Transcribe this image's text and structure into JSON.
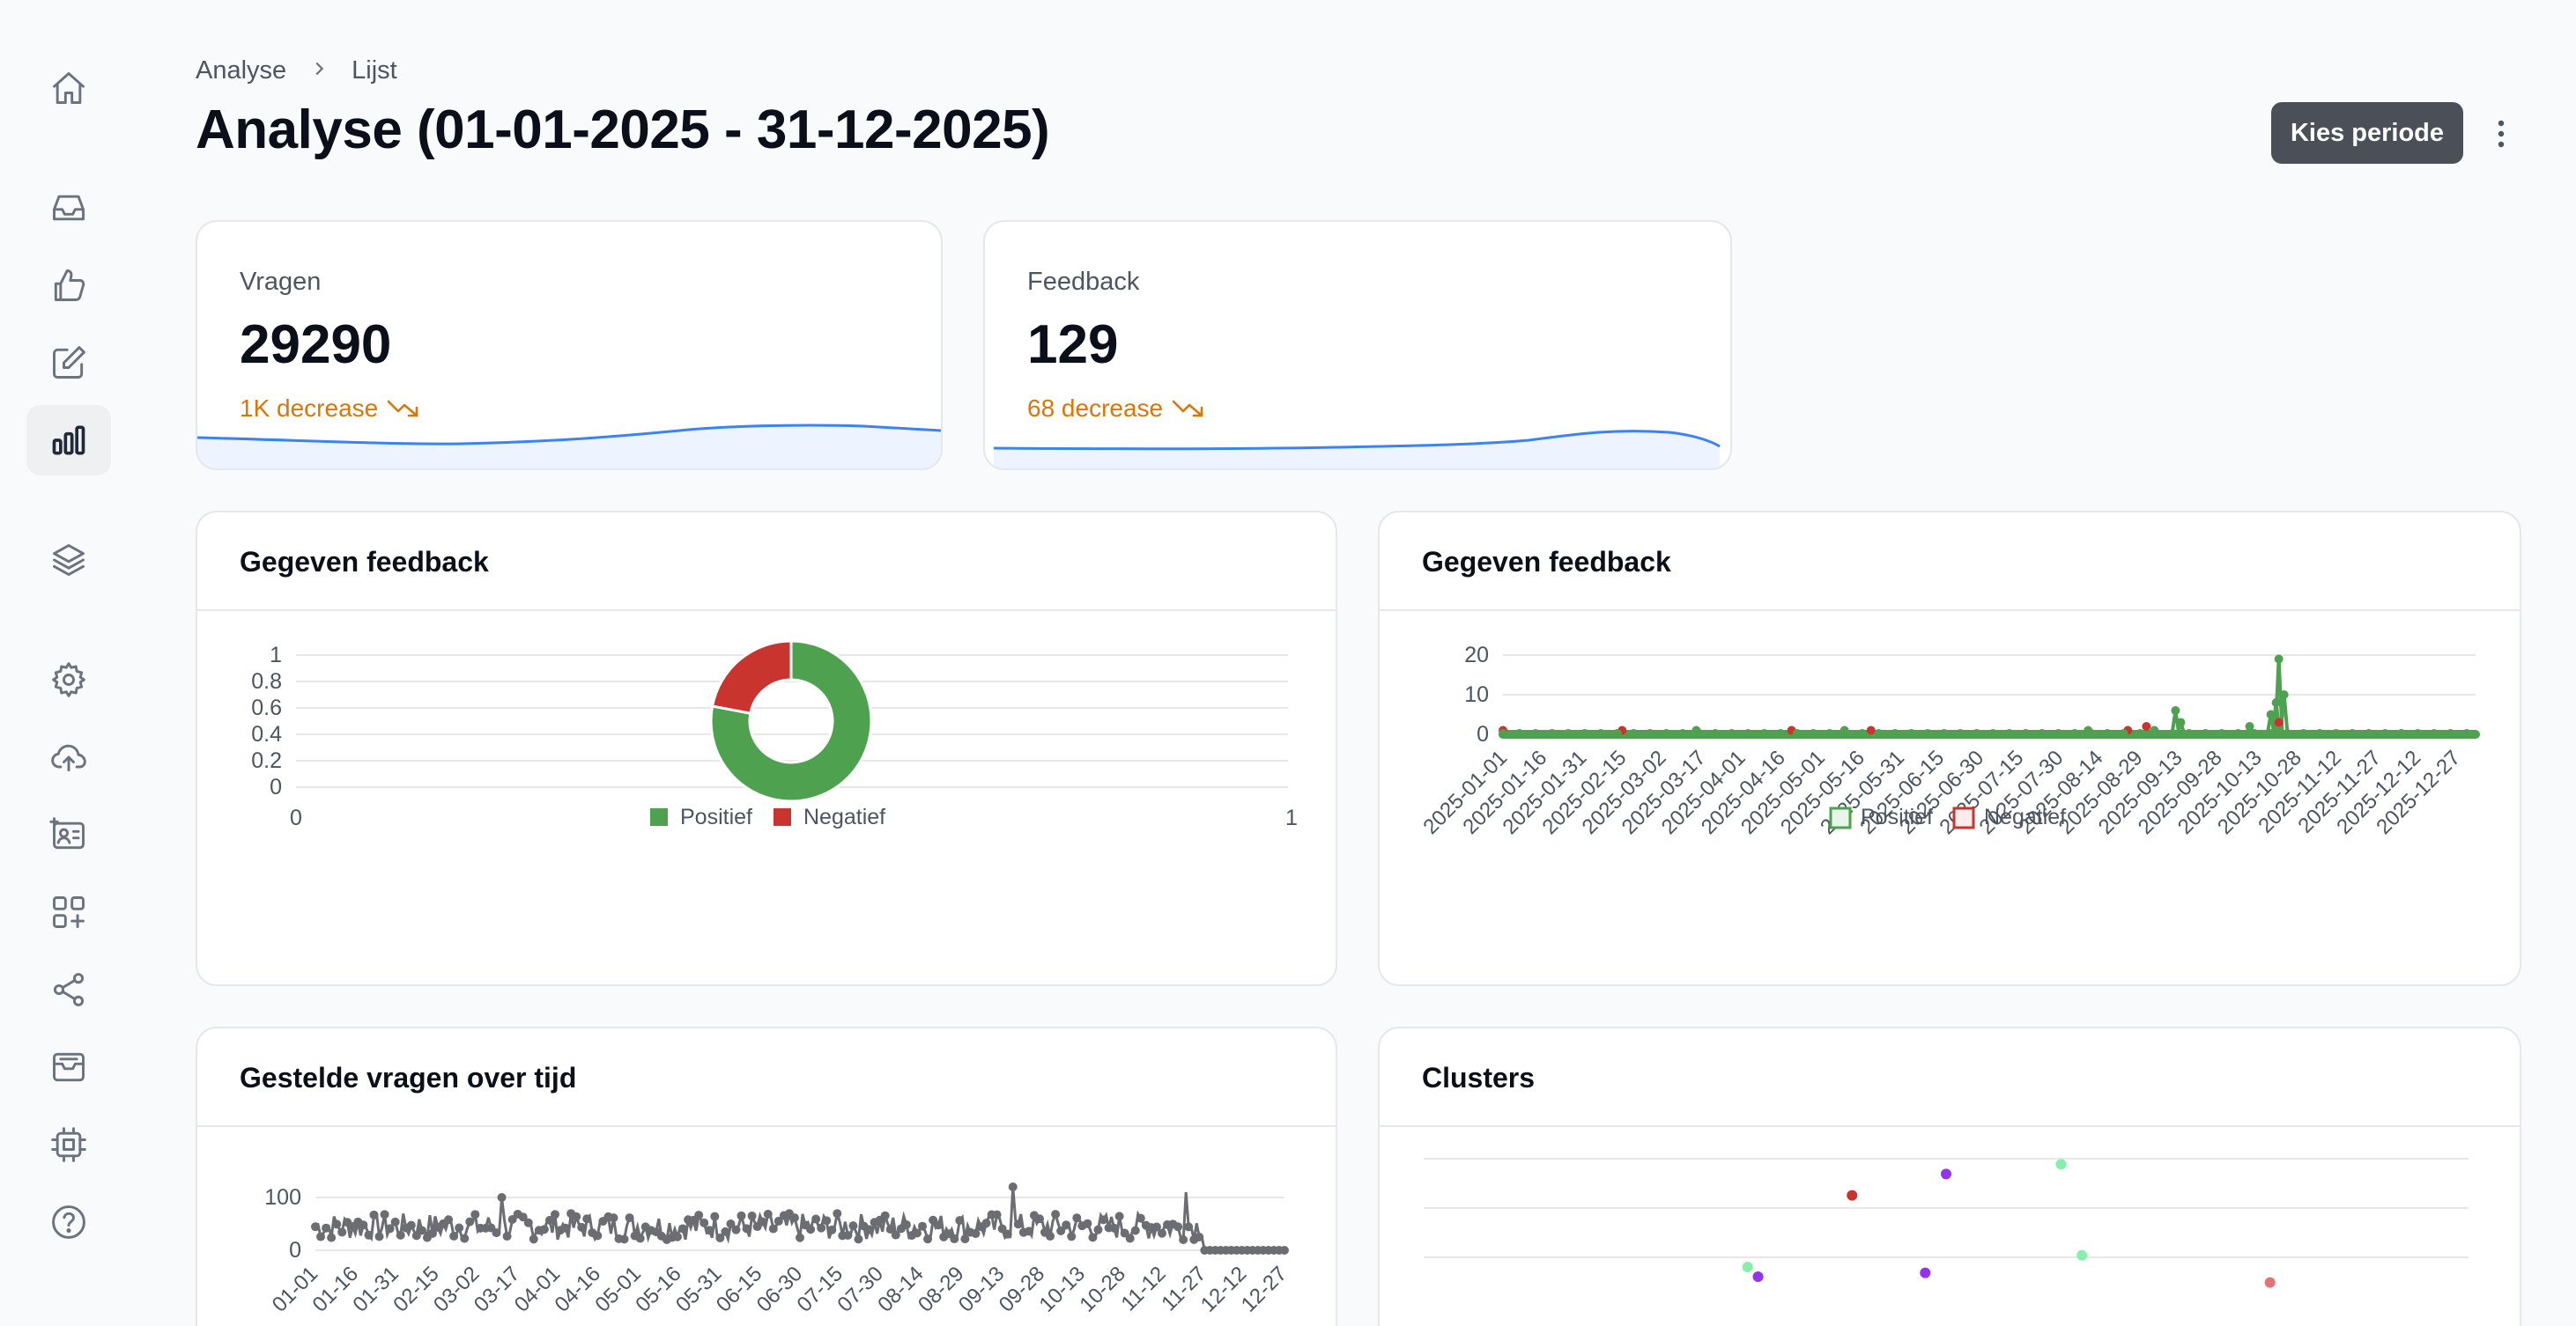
{
  "breadcrumb": {
    "root": "Analyse",
    "current": "Lijst"
  },
  "page_title": "Analyse (01-01-2025 - 31-12-2025)",
  "actions": {
    "period_button": "Kies periode"
  },
  "sidebar": {
    "icons": [
      "home-icon",
      "inbox-icon",
      "thumbs-up-icon",
      "edit-icon",
      "bar-chart-icon",
      "layers-icon",
      "gear-icon",
      "cloud-upload-icon",
      "contact-card-icon",
      "apps-add-icon",
      "share-icon",
      "archive-icon",
      "chip-icon",
      "help-icon"
    ],
    "active": "bar-chart-icon"
  },
  "stats": [
    {
      "label": "Vragen",
      "value": "29290",
      "trend": "1K decrease"
    },
    {
      "label": "Feedback",
      "value": "129",
      "trend": "68 decrease"
    }
  ],
  "colors": {
    "positive": "#4ea24f",
    "negative": "#c9352e",
    "line": "#3b82f6",
    "trend": "#d97706",
    "questions": "#6b6d72"
  },
  "panels": {
    "feedback_donut": {
      "title": "Gegeven feedback"
    },
    "feedback_line": {
      "title": "Gegeven feedback"
    },
    "questions_time": {
      "title": "Gestelde vragen over tijd"
    },
    "clusters": {
      "title": "Clusters"
    }
  },
  "chart_data": [
    {
      "type": "pie",
      "title": "Gegeven feedback",
      "categories": [
        "Positief",
        "Negatief"
      ],
      "values": [
        78,
        22
      ],
      "y_ticks": [
        "0",
        "0.2",
        "0.4",
        "0.6",
        "0.8",
        "1"
      ],
      "x_ticks": [
        "0",
        "1"
      ],
      "legend": "bottom"
    },
    {
      "type": "line",
      "title": "Gegeven feedback",
      "x_ticks": [
        "2025-01-01",
        "2025-01-16",
        "2025-01-31",
        "2025-02-15",
        "2025-03-02",
        "2025-03-17",
        "2025-04-01",
        "2025-04-16",
        "2025-05-01",
        "2025-05-16",
        "2025-05-31",
        "2025-06-15",
        "2025-06-30",
        "2025-07-15",
        "2025-07-30",
        "2025-08-14",
        "2025-08-29",
        "2025-09-13",
        "2025-09-28",
        "2025-10-13",
        "2025-10-28",
        "2025-11-12",
        "2025-11-27",
        "2025-12-12",
        "2025-12-27"
      ],
      "y_ticks": [
        "0",
        "10",
        "20"
      ],
      "ylim": [
        0,
        20
      ],
      "legend": "bottom",
      "series": [
        {
          "name": "Positief",
          "peaks": [
            [
              "2025-01-01",
              0
            ],
            [
              "2025-02-01",
              0
            ],
            [
              "2025-03-15",
              1
            ],
            [
              "2025-05-10",
              1
            ],
            [
              "2025-08-10",
              1
            ],
            [
              "2025-09-04",
              1
            ],
            [
              "2025-09-12",
              6
            ],
            [
              "2025-09-14",
              3
            ],
            [
              "2025-10-10",
              2
            ],
            [
              "2025-10-18",
              5
            ],
            [
              "2025-10-20",
              8
            ],
            [
              "2025-10-21",
              19
            ],
            [
              "2025-10-23",
              10
            ],
            [
              "2025-10-28",
              0
            ],
            [
              "2025-12-31",
              0
            ]
          ]
        },
        {
          "name": "Negatief",
          "peaks": [
            [
              "2025-01-01",
              1
            ],
            [
              "2025-02-15",
              1
            ],
            [
              "2025-04-20",
              1
            ],
            [
              "2025-05-20",
              1
            ],
            [
              "2025-08-25",
              1
            ],
            [
              "2025-09-01",
              2
            ],
            [
              "2025-10-21",
              3
            ]
          ]
        }
      ]
    },
    {
      "type": "line",
      "title": "Gestelde vragen over tijd",
      "y_ticks": [
        "0",
        "100"
      ],
      "x_ticks": [
        "01-01",
        "01-16",
        "01-31",
        "02-15",
        "03-02",
        "03-17",
        "04-01",
        "04-16",
        "05-01",
        "05-16",
        "05-31",
        "06-15",
        "06-30",
        "07-15",
        "07-30",
        "08-14",
        "08-29",
        "09-13",
        "09-28",
        "10-13",
        "10-28",
        "11-12",
        "11-27",
        "12-12",
        "12-27"
      ],
      "series": [
        {
          "name": "",
          "summary": {
            "typical_range": [
              20,
              70
            ],
            "peaks": [
              [
                "03-12",
                100
              ],
              [
                "09-20",
                120
              ],
              [
                "11-24",
                110
              ]
            ],
            "after_12-01": 0
          }
        }
      ]
    },
    {
      "type": "scatter",
      "title": "Clusters",
      "points": [
        {
          "x": 0.41,
          "y": 0.32,
          "color": "#c9352e"
        },
        {
          "x": 0.5,
          "y": 0.43,
          "color": "#9333ea"
        },
        {
          "x": 0.61,
          "y": 0.48,
          "color": "#86efac"
        },
        {
          "x": 0.31,
          "y": -0.05,
          "color": "#86efac"
        },
        {
          "x": 0.63,
          "y": 0.01,
          "color": "#86efac"
        },
        {
          "x": 0.32,
          "y": -0.1,
          "color": "#9333ea"
        },
        {
          "x": 0.48,
          "y": -0.08,
          "color": "#9333ea"
        },
        {
          "x": 0.81,
          "y": -0.13,
          "color": "#e57373"
        }
      ]
    }
  ]
}
